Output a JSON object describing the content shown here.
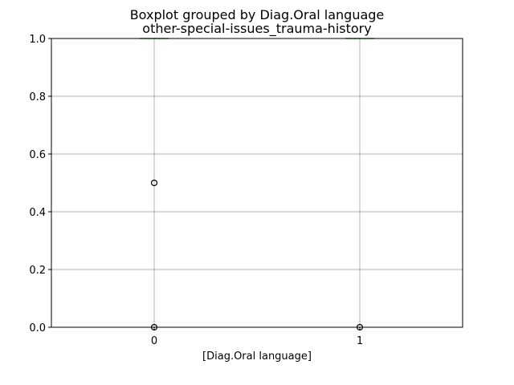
{
  "chart_data": {
    "type": "box",
    "title": "Boxplot grouped by Diag.Oral language",
    "subtitle": "other-special-issues_trauma-history",
    "xlabel": "[Diag.Oral language]",
    "ylabel": "",
    "categories": [
      "0",
      "1"
    ],
    "ylim": [
      0,
      1
    ],
    "yticks": [
      "0.0",
      "0.2",
      "0.4",
      "0.6",
      "0.8",
      "1.0"
    ],
    "grid": true,
    "boxes": [
      {
        "category": "0",
        "q1": 1.0,
        "median": 1.0,
        "q3": 1.0,
        "whisker_low": 1.0,
        "whisker_high": 1.0,
        "outliers": [
          0.5,
          0.0
        ]
      },
      {
        "category": "1",
        "q1": 1.0,
        "median": 1.0,
        "q3": 1.0,
        "whisker_low": 1.0,
        "whisker_high": 1.0,
        "outliers": [
          0.0
        ]
      }
    ],
    "colors": {
      "box": "#1f77b4",
      "median": "#2ca02c",
      "grid": "#b0b0b0",
      "outlier": "#000000"
    }
  }
}
